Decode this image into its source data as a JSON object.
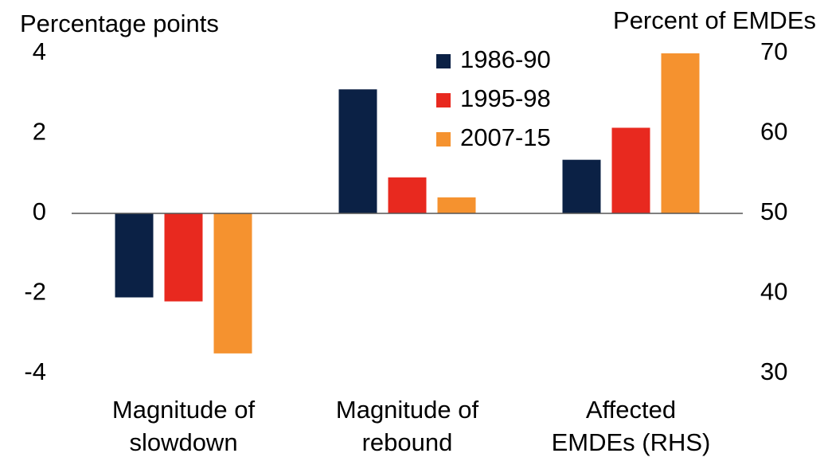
{
  "chart_data": {
    "type": "bar",
    "y_label": "Percentage points",
    "y2_label": "Percent of EMDEs",
    "categories": [
      [
        "Magnitude of",
        "slowdown"
      ],
      [
        "Magnitude of",
        "rebound"
      ],
      [
        "Affected",
        "EMDEs (RHS)"
      ]
    ],
    "series": [
      {
        "name": "1986-90",
        "color": "#0b2145",
        "values": [
          -2.1,
          3.1,
          null
        ],
        "y2_values": [
          null,
          null,
          56.7
        ]
      },
      {
        "name": "1995-98",
        "color": "#e8291f",
        "values": [
          -2.2,
          0.9,
          null
        ],
        "y2_values": [
          null,
          null,
          60.7
        ]
      },
      {
        "name": "2007-15",
        "color": "#f5922f",
        "values": [
          -3.5,
          0.4,
          null
        ],
        "y2_values": [
          null,
          null,
          70
        ]
      }
    ],
    "ylim": [
      -4,
      4
    ],
    "yticks": [
      -4,
      -2,
      0,
      2,
      4
    ],
    "y2lim": [
      30,
      70
    ],
    "y2ticks": [
      30,
      40,
      50,
      60,
      70
    ],
    "legend": "top-center"
  }
}
